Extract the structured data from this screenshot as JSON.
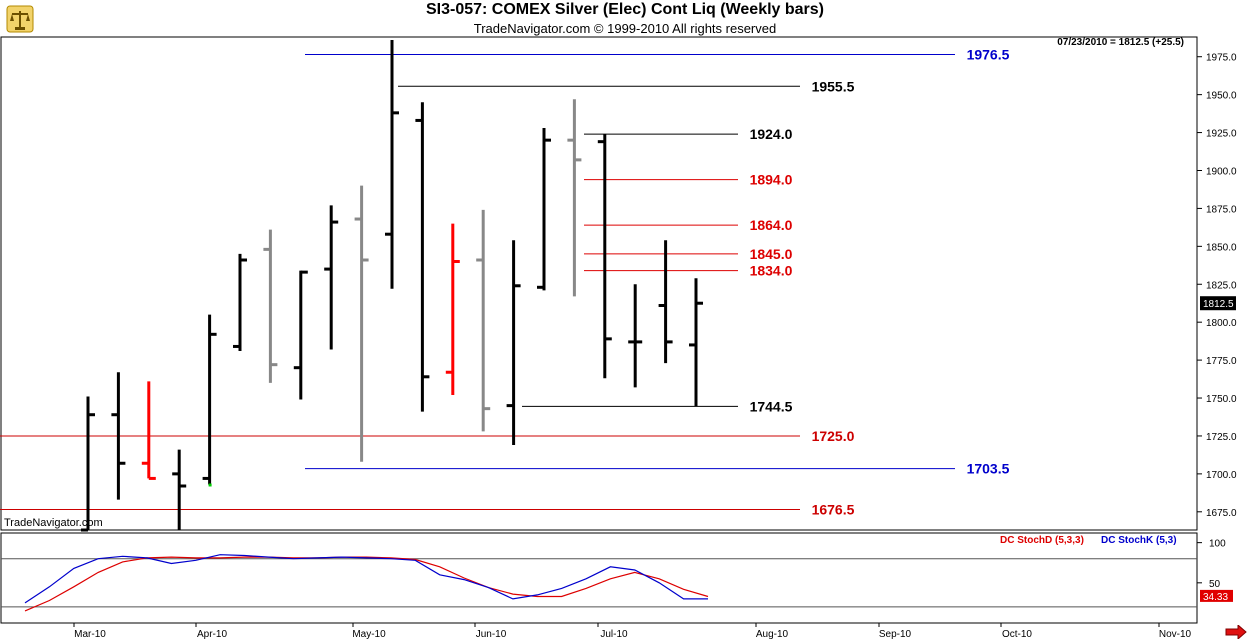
{
  "window": {
    "title": "SI3-057:  COMEX Silver (Elec) Cont Liq  (Weekly bars)",
    "subtitle": "TradeNavigator.com © 1999-2010 All rights reserved",
    "last_info": "07/23/2010 = 1812.5 (+25.5)",
    "watermark": "TradeNavigator.com",
    "logo_icon": "scale-icon",
    "nav_icon": "right-arrow-icon"
  },
  "chart_data": [
    {
      "type": "ohlc",
      "title": "SI3-057:  COMEX Silver (Elec) Cont Liq  (Weekly bars)",
      "ylim": [
        1663,
        1988
      ],
      "y_ticks": [
        1675.0,
        1700.0,
        1725.0,
        1750.0,
        1775.0,
        1800.0,
        1825.0,
        1850.0,
        1875.0,
        1900.0,
        1925.0,
        1950.0,
        1975.0
      ],
      "x_labels": [
        "Mar-10",
        "Apr-10",
        "May-10",
        "Jun-10",
        "Jul-10",
        "Aug-10",
        "Sep-10",
        "Oct-10",
        "Nov-10"
      ],
      "last_price_label": "1812.5",
      "colors": {
        "up": "#000000",
        "down": "#000000",
        "neutral": "#888888",
        "red": "#ff0000",
        "signal": "#00cc00"
      },
      "bars": [
        {
          "o": 1663,
          "h": 1751,
          "l": 1663,
          "c": 1739,
          "color": "black"
        },
        {
          "o": 1739,
          "h": 1767,
          "l": 1683,
          "c": 1707,
          "color": "black"
        },
        {
          "o": 1707,
          "h": 1761,
          "l": 1697,
          "c": 1697,
          "color": "red"
        },
        {
          "o": 1700,
          "h": 1716,
          "l": 1663,
          "c": 1692,
          "color": "black"
        },
        {
          "o": 1697,
          "h": 1805,
          "l": 1693,
          "c": 1792,
          "color": "black"
        },
        {
          "o": 1784,
          "h": 1845,
          "l": 1781,
          "c": 1841,
          "color": "black"
        },
        {
          "o": 1848,
          "h": 1861,
          "l": 1760,
          "c": 1772,
          "color": "gray"
        },
        {
          "o": 1770,
          "h": 1834,
          "l": 1749,
          "c": 1833,
          "color": "black"
        },
        {
          "o": 1835,
          "h": 1877,
          "l": 1782,
          "c": 1866,
          "color": "black"
        },
        {
          "o": 1868,
          "h": 1890,
          "l": 1708,
          "c": 1841,
          "color": "gray"
        },
        {
          "o": 1858,
          "h": 1986,
          "l": 1822,
          "c": 1938,
          "color": "black"
        },
        {
          "o": 1933,
          "h": 1945,
          "l": 1741,
          "c": 1764,
          "color": "black"
        },
        {
          "o": 1767,
          "h": 1865,
          "l": 1752,
          "c": 1840,
          "color": "red"
        },
        {
          "o": 1841,
          "h": 1874,
          "l": 1728,
          "c": 1743,
          "color": "gray"
        },
        {
          "o": 1745,
          "h": 1854,
          "l": 1719,
          "c": 1824,
          "color": "black"
        },
        {
          "o": 1823,
          "h": 1928,
          "l": 1821,
          "c": 1920,
          "color": "black"
        },
        {
          "o": 1920,
          "h": 1947,
          "l": 1817,
          "c": 1907,
          "color": "gray"
        },
        {
          "o": 1919,
          "h": 1924,
          "l": 1763,
          "c": 1789,
          "color": "black"
        },
        {
          "o": 1787,
          "h": 1825,
          "l": 1757,
          "c": 1787,
          "color": "black"
        },
        {
          "o": 1811,
          "h": 1854,
          "l": 1773,
          "c": 1787,
          "color": "black"
        },
        {
          "o": 1785,
          "h": 1829,
          "l": 1744.5,
          "c": 1812.5,
          "color": "black"
        }
      ],
      "signal_point": {
        "bar": 4,
        "value": 1693
      },
      "levels": [
        {
          "value": 1976.5,
          "label": "1976.5",
          "color": "#0000cc"
        },
        {
          "value": 1955.5,
          "label": "1955.5",
          "color": "#000000"
        },
        {
          "value": 1924.0,
          "label": "1924.0",
          "color": "#000000"
        },
        {
          "value": 1894.0,
          "label": "1894.0",
          "color": "#dd0000"
        },
        {
          "value": 1864.0,
          "label": "1864.0",
          "color": "#dd0000"
        },
        {
          "value": 1845.0,
          "label": "1845.0",
          "color": "#dd0000"
        },
        {
          "value": 1834.0,
          "label": "1834.0",
          "color": "#dd0000"
        },
        {
          "value": 1744.5,
          "label": "1744.5",
          "color": "#000000"
        },
        {
          "value": 1725.0,
          "label": "1725.0",
          "color": "#cc0000"
        },
        {
          "value": 1703.5,
          "label": "1703.5",
          "color": "#0000cc"
        },
        {
          "value": 1676.5,
          "label": "1676.5",
          "color": "#cc0000"
        }
      ]
    },
    {
      "type": "line",
      "title": "",
      "ylim": [
        0,
        112
      ],
      "y_ticks": [
        50,
        100
      ],
      "guide_lines": [
        80,
        20
      ],
      "legend": [
        {
          "name": "DC  StochD (5,3,3)",
          "color": "#dd0000"
        },
        {
          "name": "DC  StochK (5,3)",
          "color": "#0000cc"
        }
      ],
      "last_value_label": "34.33",
      "series": [
        {
          "name": "DC  StochD (5,3,3)",
          "color": "#dd0000",
          "values": [
            15,
            28,
            45,
            63,
            76,
            81,
            82,
            81,
            81,
            82,
            82,
            81,
            81,
            82,
            82,
            81,
            79,
            70,
            56,
            44,
            36,
            33,
            33,
            43,
            55,
            63,
            55,
            42,
            33
          ]
        },
        {
          "name": "DC  StochK (5,3)",
          "color": "#0000cc",
          "values": [
            25,
            45,
            68,
            80,
            83,
            81,
            74,
            78,
            85,
            84,
            82,
            80,
            81,
            82,
            81,
            80,
            78,
            60,
            54,
            44,
            30,
            35,
            43,
            55,
            70,
            66,
            50,
            30,
            30
          ]
        }
      ]
    }
  ]
}
